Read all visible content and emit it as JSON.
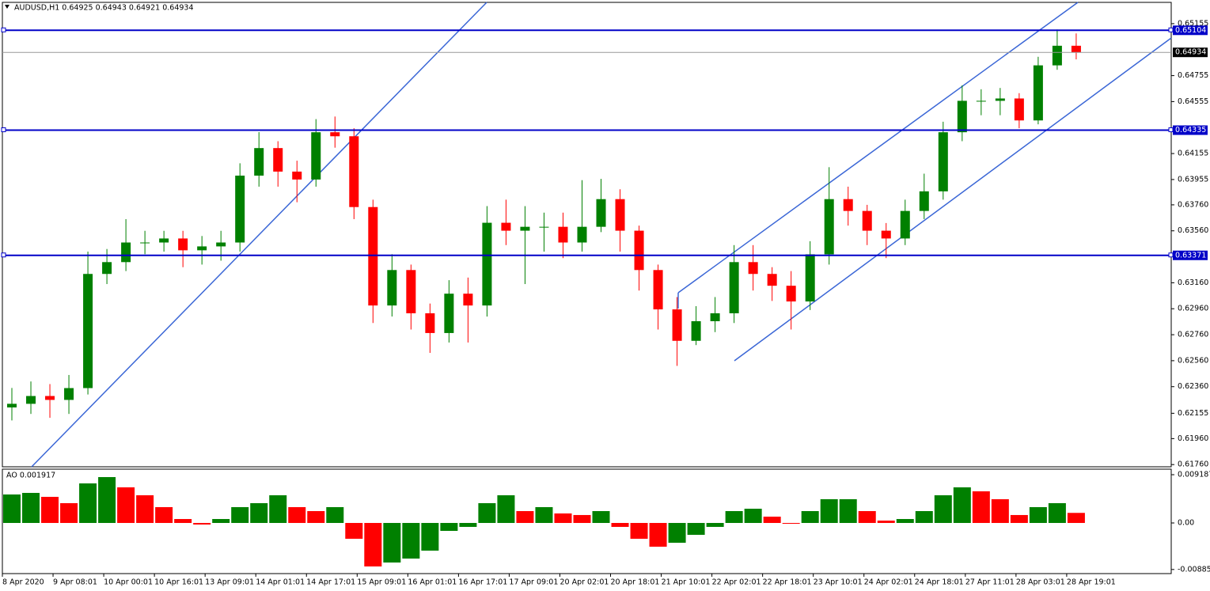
{
  "chart_data": [
    {
      "type": "candlestick",
      "title": "AUDUSD,H1  0.64925 0.64943 0.64921 0.64934",
      "xlim": [
        0,
        369
      ],
      "xticks": [
        {
          "value": 0,
          "label": "8 Apr 2020"
        },
        {
          "value": 16,
          "label": "9 Apr 08:01"
        },
        {
          "value": 32,
          "label": "10 Apr 00:01"
        },
        {
          "value": 48,
          "label": "10 Apr 16:01"
        },
        {
          "value": 64,
          "label": "13 Apr 09:01"
        },
        {
          "value": 80,
          "label": "14 Apr 01:01"
        },
        {
          "value": 96,
          "label": "14 Apr 17:01"
        },
        {
          "value": 112,
          "label": "15 Apr 09:01"
        },
        {
          "value": 128,
          "label": "16 Apr 01:01"
        },
        {
          "value": 144,
          "label": "16 Apr 17:01"
        },
        {
          "value": 160,
          "label": "17 Apr 09:01"
        },
        {
          "value": 176,
          "label": "20 Apr 02:01"
        },
        {
          "value": 192,
          "label": "20 Apr 18:01"
        },
        {
          "value": 208,
          "label": "21 Apr 10:01"
        },
        {
          "value": 224,
          "label": "22 Apr 02:01"
        },
        {
          "value": 240,
          "label": "22 Apr 18:01"
        },
        {
          "value": 256,
          "label": "23 Apr 10:01"
        },
        {
          "value": 272,
          "label": "24 Apr 02:01"
        },
        {
          "value": 288,
          "label": "24 Apr 18:01"
        },
        {
          "value": 304,
          "label": "27 Apr 11:01"
        },
        {
          "value": 320,
          "label": "28 Apr 03:01"
        },
        {
          "value": 336,
          "label": "28 Apr 19:01"
        }
      ],
      "ylim": [
        0.61743,
        0.65319
      ],
      "yticks": [
        0.65155,
        0.64755,
        0.64555,
        0.64155,
        0.63955,
        {
          "value": 0.6376,
          "label": "0.63760"
        },
        {
          "value": 0.6356,
          "label": "0.63560"
        },
        {
          "value": 0.6316,
          "label": "0.63160"
        },
        {
          "value": 0.6296,
          "label": "0.62960"
        },
        {
          "value": 0.6276,
          "label": "0.62760"
        },
        {
          "value": 0.6256,
          "label": "0.62560"
        },
        {
          "value": 0.6236,
          "label": "0.62360"
        },
        0.62155,
        {
          "value": 0.6196,
          "label": "0.61960"
        },
        {
          "value": 0.6176,
          "label": "0.61760"
        }
      ],
      "levels": [
        0.65104,
        0.64335,
        0.63371
      ],
      "level_color": "#0000c8",
      "current_price": 0.64934,
      "up_color": "#008000",
      "down_color": "#ff0000",
      "x": [
        3,
        9,
        15,
        21,
        27,
        33,
        39,
        45,
        51,
        57,
        63,
        69,
        75,
        81,
        87,
        93,
        99,
        105,
        111,
        117,
        123,
        129,
        135,
        141,
        147,
        153,
        159,
        165,
        171,
        177,
        183,
        189,
        195,
        201,
        207,
        213,
        219,
        225,
        231,
        237,
        243,
        249,
        255,
        261,
        267,
        273,
        279,
        285,
        291,
        297,
        303,
        309,
        315,
        321,
        327,
        333,
        339
      ],
      "open": [
        0.622,
        0.62228,
        0.62288,
        0.62258,
        0.62349,
        0.63228,
        0.63319,
        0.6347,
        0.6347,
        0.63501,
        0.6341,
        0.6344,
        0.6347,
        0.63985,
        0.64197,
        0.64016,
        0.63955,
        0.64319,
        0.64288,
        0.63743,
        0.62985,
        0.63258,
        0.62925,
        0.62773,
        0.63076,
        0.62985,
        0.63622,
        0.63561,
        0.63591,
        0.63591,
        0.6347,
        0.63591,
        0.63804,
        0.63561,
        0.63258,
        0.62955,
        0.62713,
        0.62864,
        0.62925,
        0.63319,
        0.63228,
        0.63137,
        0.63016,
        0.63379,
        0.63804,
        0.63713,
        0.63561,
        0.63501,
        0.63713,
        0.63864,
        0.64319,
        0.64561,
        0.64561,
        0.64579,
        0.6441,
        0.64834,
        0.64985
      ],
      "high": [
        0.6235,
        0.624,
        0.6238,
        0.6245,
        0.634,
        0.6342,
        0.6365,
        0.6356,
        0.6356,
        0.6356,
        0.6352,
        0.6356,
        0.6408,
        0.6432,
        0.6425,
        0.641,
        0.6442,
        0.6444,
        0.6435,
        0.638,
        0.6338,
        0.633,
        0.63,
        0.6318,
        0.632,
        0.6375,
        0.638,
        0.6375,
        0.637,
        0.637,
        0.6395,
        0.6396,
        0.6388,
        0.636,
        0.633,
        0.6305,
        0.6298,
        0.6305,
        0.6345,
        0.6345,
        0.6328,
        0.6325,
        0.6348,
        0.6405,
        0.639,
        0.6376,
        0.6362,
        0.638,
        0.64,
        0.644,
        0.6468,
        0.6465,
        0.6466,
        0.6462,
        0.649,
        0.6511,
        0.6508
      ],
      "low": [
        0.621,
        0.6215,
        0.6212,
        0.6215,
        0.623,
        0.6315,
        0.6325,
        0.6338,
        0.634,
        0.6328,
        0.633,
        0.6333,
        0.634,
        0.639,
        0.639,
        0.6378,
        0.639,
        0.642,
        0.6365,
        0.6285,
        0.629,
        0.628,
        0.6262,
        0.627,
        0.627,
        0.629,
        0.6345,
        0.6315,
        0.634,
        0.6335,
        0.634,
        0.6355,
        0.634,
        0.631,
        0.628,
        0.6252,
        0.6268,
        0.6278,
        0.6285,
        0.631,
        0.6302,
        0.628,
        0.6295,
        0.633,
        0.636,
        0.6345,
        0.6335,
        0.6345,
        0.6365,
        0.638,
        0.6425,
        0.6445,
        0.6445,
        0.6435,
        0.6438,
        0.648,
        0.6488
      ],
      "close": [
        0.62228,
        0.62288,
        0.62258,
        0.62349,
        0.63228,
        0.63319,
        0.6347,
        0.6347,
        0.63501,
        0.6341,
        0.6344,
        0.6347,
        0.63985,
        0.64197,
        0.64016,
        0.63955,
        0.64319,
        0.64288,
        0.63743,
        0.62985,
        0.63258,
        0.62925,
        0.62773,
        0.63076,
        0.62985,
        0.63622,
        0.63561,
        0.63591,
        0.63591,
        0.6347,
        0.63591,
        0.63804,
        0.63561,
        0.63258,
        0.62955,
        0.62713,
        0.62864,
        0.62925,
        0.63319,
        0.63228,
        0.63137,
        0.63016,
        0.63379,
        0.63804,
        0.63713,
        0.63561,
        0.63501,
        0.63713,
        0.63864,
        0.64319,
        0.64561,
        0.64561,
        0.64579,
        0.6441,
        0.64834,
        0.64985,
        0.64934
      ]
    },
    {
      "type": "bar",
      "title": "AO 0.001917",
      "ylim": [
        -0.00964,
        0.01024
      ],
      "yticks": [
        0.009187,
        {
          "value": 0,
          "label": "0.00"
        },
        -0.008859
      ],
      "up_color": "#008000",
      "down_color": "#ff0000",
      "x": [
        3,
        9,
        15,
        21,
        27,
        33,
        39,
        45,
        51,
        57,
        63,
        69,
        75,
        81,
        87,
        93,
        99,
        105,
        111,
        117,
        123,
        129,
        135,
        141,
        147,
        153,
        159,
        165,
        171,
        177,
        183,
        189,
        195,
        201,
        207,
        213,
        219,
        225,
        231,
        237,
        243,
        249,
        255,
        261,
        267,
        273,
        279,
        285,
        291,
        297,
        303,
        309,
        315,
        321,
        327,
        333,
        339
      ],
      "values": [
        0.00542,
        0.00572,
        0.00497,
        0.00377,
        0.00753,
        0.00873,
        0.00678,
        0.00527,
        0.00301,
        0.00075,
        -0.0003,
        0.00075,
        0.00301,
        0.00377,
        0.00527,
        0.00301,
        0.00226,
        0.00301,
        -0.00301,
        -0.00828,
        -0.00753,
        -0.00678,
        -0.00527,
        -0.00151,
        -0.00075,
        0.00377,
        0.00527,
        0.00226,
        0.00301,
        0.00181,
        0.00151,
        0.00226,
        -0.00075,
        -0.00301,
        -0.00452,
        -0.00377,
        -0.00226,
        -0.00075,
        0.00226,
        0.00271,
        0.0012,
        0,
        0.00226,
        0.00452,
        0.00452,
        0.00226,
        0.00045,
        0.00075,
        0.00226,
        0.00527,
        0.00678,
        0.00602,
        0.00452,
        0.00151,
        0.00301,
        0.00377,
        0.001917
      ]
    }
  ]
}
